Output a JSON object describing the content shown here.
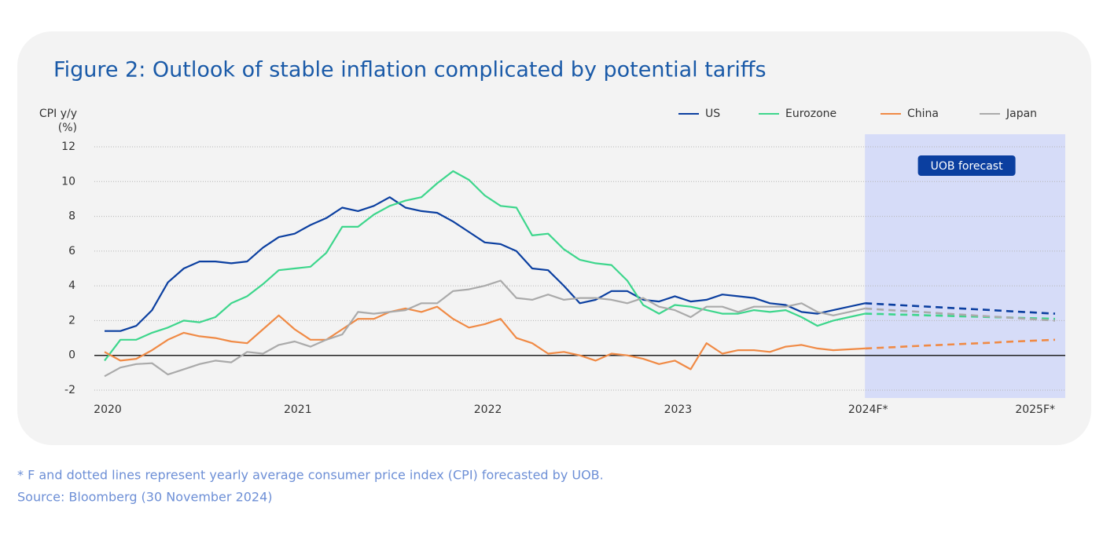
{
  "chart_data": {
    "type": "line",
    "title": "Figure 2: Outlook of stable inflation complicated by potential tariffs",
    "y_label": [
      "CPI y/y",
      "(%)"
    ],
    "annotation": "UOB forecast",
    "notes": [
      "* F and dotted lines represent yearly average consumer price index (CPI) forecasted by UOB.",
      "Source: Bloomberg (30 November 2024)"
    ],
    "categories": [
      "2020",
      null,
      null,
      null,
      null,
      null,
      null,
      null,
      null,
      null,
      null,
      null,
      "2021",
      null,
      null,
      null,
      null,
      null,
      null,
      null,
      null,
      null,
      null,
      null,
      "2022",
      null,
      null,
      null,
      null,
      null,
      null,
      null,
      null,
      null,
      null,
      null,
      "2023",
      null,
      null,
      null,
      null,
      null,
      null,
      null,
      null,
      null,
      null,
      null,
      "2024F*",
      null,
      null,
      null,
      null,
      null,
      null,
      null,
      null,
      null,
      null,
      null,
      "2025F*"
    ],
    "ylim": [
      -2,
      12
    ],
    "yticks": [
      -2,
      0,
      2,
      4,
      6,
      8,
      10,
      12
    ],
    "grid": true,
    "legend": "top-right",
    "series": [
      {
        "name": "US",
        "color": "#0b3fa0",
        "values": [
          1.4,
          1.4,
          1.7,
          2.6,
          4.2,
          5.0,
          5.4,
          5.4,
          5.3,
          5.4,
          6.2,
          6.8,
          7.0,
          7.5,
          7.9,
          8.5,
          8.3,
          8.6,
          9.1,
          8.5,
          8.3,
          8.2,
          7.7,
          7.1,
          6.5,
          6.4,
          6.0,
          5.0,
          4.9,
          4.0,
          3.0,
          3.2,
          3.7,
          3.7,
          3.2,
          3.1,
          3.4,
          3.1,
          3.2,
          3.5,
          3.4,
          3.3,
          3.0,
          2.9,
          2.5,
          2.4,
          2.6,
          2.8,
          3.0,
          null,
          null,
          null,
          null,
          null,
          null,
          null,
          null,
          null,
          null,
          null,
          null
        ],
        "forecast": [
          null,
          null,
          null,
          null,
          null,
          null,
          null,
          null,
          null,
          null,
          null,
          null,
          null,
          null,
          null,
          null,
          null,
          null,
          null,
          null,
          null,
          null,
          null,
          null,
          null,
          null,
          null,
          null,
          null,
          null,
          null,
          null,
          null,
          null,
          null,
          null,
          null,
          null,
          null,
          null,
          null,
          null,
          null,
          null,
          null,
          null,
          null,
          null,
          3.0,
          2.95,
          2.9,
          2.85,
          2.8,
          2.75,
          2.7,
          2.65,
          2.6,
          2.55,
          2.5,
          2.45,
          2.4
        ]
      },
      {
        "name": "Eurozone",
        "color": "#3dd68c",
        "values": [
          -0.3,
          0.9,
          0.9,
          1.3,
          1.6,
          2.0,
          1.9,
          2.2,
          3.0,
          3.4,
          4.1,
          4.9,
          5.0,
          5.1,
          5.9,
          7.4,
          7.4,
          8.1,
          8.6,
          8.9,
          9.1,
          9.9,
          10.6,
          10.1,
          9.2,
          8.6,
          8.5,
          6.9,
          7.0,
          6.1,
          5.5,
          5.3,
          5.2,
          4.3,
          2.9,
          2.4,
          2.9,
          2.8,
          2.6,
          2.4,
          2.4,
          2.6,
          2.5,
          2.6,
          2.2,
          1.7,
          2.0,
          2.2,
          2.4,
          null,
          null,
          null,
          null,
          null,
          null,
          null,
          null,
          null,
          null,
          null,
          null
        ],
        "forecast": [
          null,
          null,
          null,
          null,
          null,
          null,
          null,
          null,
          null,
          null,
          null,
          null,
          null,
          null,
          null,
          null,
          null,
          null,
          null,
          null,
          null,
          null,
          null,
          null,
          null,
          null,
          null,
          null,
          null,
          null,
          null,
          null,
          null,
          null,
          null,
          null,
          null,
          null,
          null,
          null,
          null,
          null,
          null,
          null,
          null,
          null,
          null,
          null,
          2.4,
          2.38,
          2.35,
          2.33,
          2.3,
          2.28,
          2.25,
          2.23,
          2.2,
          2.18,
          2.15,
          2.13,
          2.1
        ]
      },
      {
        "name": "China",
        "color": "#f08a45",
        "values": [
          0.2,
          -0.3,
          -0.2,
          0.3,
          0.9,
          1.3,
          1.1,
          1.0,
          0.8,
          0.7,
          1.5,
          2.3,
          1.5,
          0.9,
          0.9,
          1.5,
          2.1,
          2.1,
          2.5,
          2.7,
          2.5,
          2.8,
          2.1,
          1.6,
          1.8,
          2.1,
          1.0,
          0.7,
          0.1,
          0.2,
          0.0,
          -0.3,
          0.1,
          0.0,
          -0.2,
          -0.5,
          -0.3,
          -0.8,
          0.7,
          0.1,
          0.3,
          0.3,
          0.2,
          0.5,
          0.6,
          0.4,
          0.3,
          0.35,
          0.4,
          null,
          null,
          null,
          null,
          null,
          null,
          null,
          null,
          null,
          null,
          null,
          null
        ],
        "forecast": [
          null,
          null,
          null,
          null,
          null,
          null,
          null,
          null,
          null,
          null,
          null,
          null,
          null,
          null,
          null,
          null,
          null,
          null,
          null,
          null,
          null,
          null,
          null,
          null,
          null,
          null,
          null,
          null,
          null,
          null,
          null,
          null,
          null,
          null,
          null,
          null,
          null,
          null,
          null,
          null,
          null,
          null,
          null,
          null,
          null,
          null,
          null,
          null,
          0.4,
          0.44,
          0.48,
          0.53,
          0.57,
          0.61,
          0.65,
          0.69,
          0.73,
          0.78,
          0.82,
          0.86,
          0.9
        ]
      },
      {
        "name": "Japan",
        "color": "#aaaaaa",
        "values": [
          -1.2,
          -0.7,
          -0.5,
          -0.45,
          -1.1,
          -0.8,
          -0.5,
          -0.3,
          -0.4,
          0.2,
          0.1,
          0.6,
          0.8,
          0.5,
          0.9,
          1.2,
          2.5,
          2.4,
          2.5,
          2.6,
          3.0,
          3.0,
          3.7,
          3.8,
          4.0,
          4.3,
          3.3,
          3.2,
          3.5,
          3.2,
          3.3,
          3.3,
          3.2,
          3.0,
          3.3,
          2.8,
          2.6,
          2.2,
          2.8,
          2.8,
          2.5,
          2.8,
          2.8,
          2.8,
          3.0,
          2.5,
          2.3,
          2.5,
          2.7,
          null,
          null,
          null,
          null,
          null,
          null,
          null,
          null,
          null,
          null,
          null,
          null
        ],
        "forecast": [
          null,
          null,
          null,
          null,
          null,
          null,
          null,
          null,
          null,
          null,
          null,
          null,
          null,
          null,
          null,
          null,
          null,
          null,
          null,
          null,
          null,
          null,
          null,
          null,
          null,
          null,
          null,
          null,
          null,
          null,
          null,
          null,
          null,
          null,
          null,
          null,
          null,
          null,
          null,
          null,
          null,
          null,
          null,
          null,
          null,
          null,
          null,
          null,
          2.7,
          2.64,
          2.58,
          2.53,
          2.47,
          2.41,
          2.35,
          2.29,
          2.23,
          2.18,
          2.12,
          2.06,
          2.0
        ]
      }
    ]
  }
}
